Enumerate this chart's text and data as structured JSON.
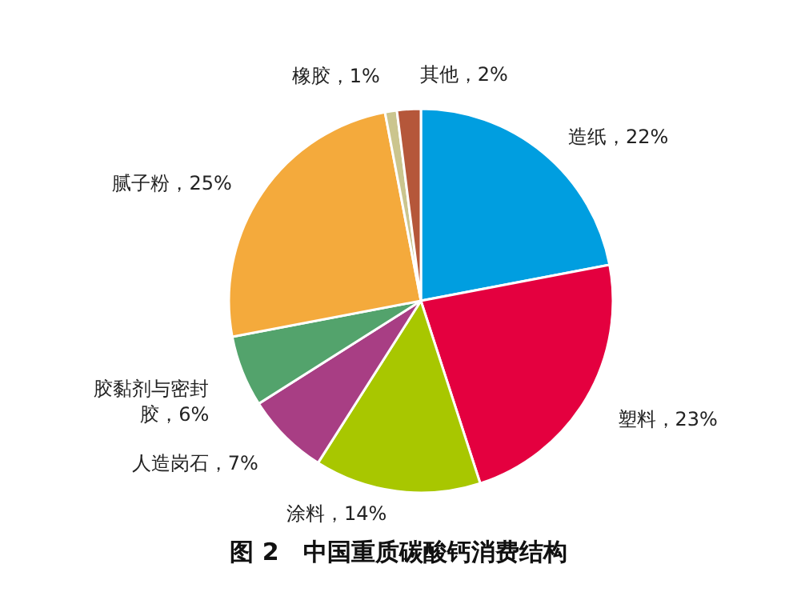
{
  "chart_data": {
    "type": "pie",
    "title": "图 2　中国重质碳酸钙消费结构",
    "categories": [
      "造纸",
      "塑料",
      "涂料",
      "人造岗石",
      "胶黏剂与密封胶",
      "腻子粉",
      "橡胶",
      "其他"
    ],
    "values": [
      22,
      23,
      14,
      7,
      6,
      25,
      1,
      2
    ],
    "colors": [
      "#009ee0",
      "#e4003f",
      "#a8c700",
      "#a83e84",
      "#53a36c",
      "#f4aa3c",
      "#cbc58e",
      "#b5573a"
    ],
    "value_labels": [
      "22%",
      "23%",
      "14%",
      "7%",
      "6%",
      "25%",
      "1%",
      "2%"
    ]
  }
}
